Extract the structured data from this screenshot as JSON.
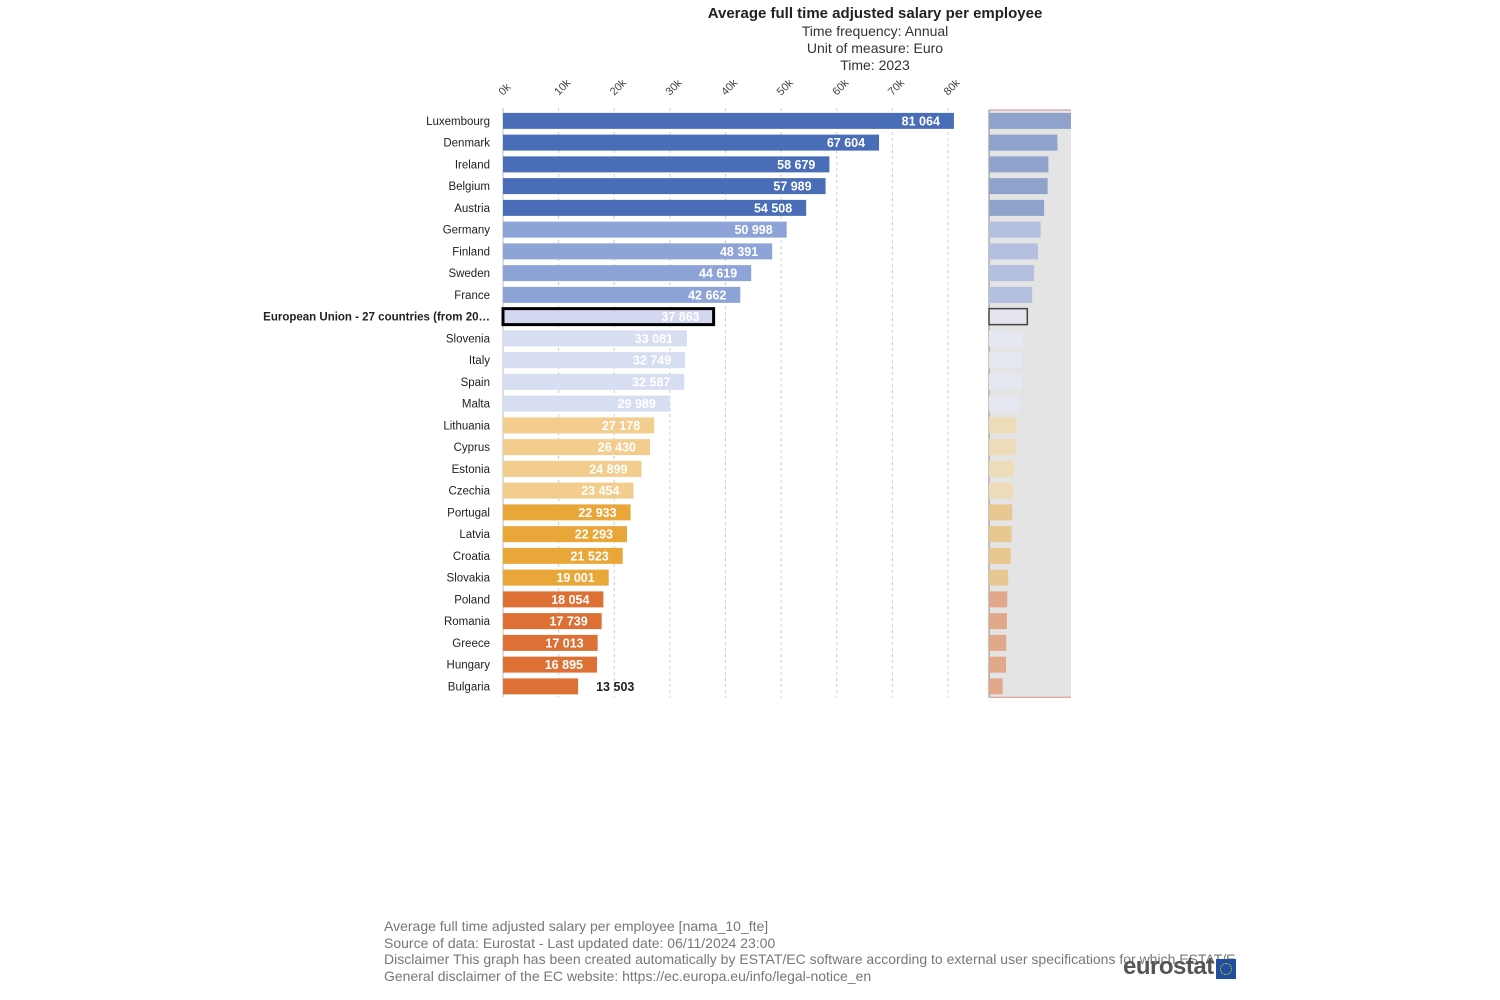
{
  "chart_data": {
    "type": "bar",
    "orientation": "horizontal",
    "title": "Average full time adjusted salary per employee",
    "subtitle": [
      "Time frequency:  Annual",
      "Unit of measure:  Euro",
      "Time:  2023"
    ],
    "xlim": [
      0,
      80000
    ],
    "xticks": [
      "0k",
      "10k",
      "20k",
      "30k",
      "40k",
      "50k",
      "60k",
      "70k",
      "80k"
    ],
    "grid": true,
    "highlighted_category": "European Union - 27 countries (from 20…",
    "categories": [
      "Luxembourg",
      "Denmark",
      "Ireland",
      "Belgium",
      "Austria",
      "Germany",
      "Finland",
      "Sweden",
      "France",
      "European Union - 27 countries (from 20…",
      "Slovenia",
      "Italy",
      "Spain",
      "Malta",
      "Lithuania",
      "Cyprus",
      "Estonia",
      "Czechia",
      "Portugal",
      "Latvia",
      "Croatia",
      "Slovakia",
      "Poland",
      "Romania",
      "Greece",
      "Hungary",
      "Bulgaria"
    ],
    "values": [
      81064,
      67604,
      58679,
      57989,
      54508,
      50998,
      48391,
      44619,
      42662,
      37863,
      33081,
      32749,
      32587,
      29989,
      27178,
      26430,
      24899,
      23454,
      22933,
      22293,
      21523,
      19001,
      18054,
      17739,
      17013,
      16895,
      13503
    ],
    "value_labels": [
      "81 064",
      "67 604",
      "58 679",
      "57 989",
      "54 508",
      "50 998",
      "48 391",
      "44 619",
      "42 662",
      "37 863",
      "33 081",
      "32 749",
      "32 587",
      "29 989",
      "27 178",
      "26 430",
      "24 899",
      "23 454",
      "22 933",
      "22 293",
      "21 523",
      "19 001",
      "18 054",
      "17 739",
      "17 013",
      "16 895",
      "13 503"
    ],
    "colors": [
      "#4a6db8",
      "#4a6db8",
      "#4a6db8",
      "#4a6db8",
      "#4a6db8",
      "#8ea3d8",
      "#8ea3d8",
      "#8ea3d8",
      "#8ea3d8",
      "#d3d7f0",
      "#d8def2",
      "#d8def2",
      "#d8def2",
      "#d8def2",
      "#f2cd8e",
      "#f2cd8e",
      "#f2cd8e",
      "#f2cd8e",
      "#e9a73a",
      "#e9a73a",
      "#e9a73a",
      "#e9a73a",
      "#dc7035",
      "#dc7035",
      "#dc7035",
      "#dc7035",
      "#dc7035"
    ],
    "navigator_colors": [
      "#8ea2cc",
      "#8ea2cc",
      "#8ea2cc",
      "#8ea2cc",
      "#8ea2cc",
      "#b3c0df",
      "#b3c0df",
      "#b3c0df",
      "#b3c0df",
      "#e3e4ee",
      "#e6e8f1",
      "#e6e8f1",
      "#e6e8f1",
      "#e6e8f1",
      "#eedcb8",
      "#eedcb8",
      "#eedcb8",
      "#eedcb8",
      "#e9c790",
      "#e9c790",
      "#e9c790",
      "#e9c790",
      "#e2a88a",
      "#e2a88a",
      "#e2a88a",
      "#e2a88a",
      "#e2a88a"
    ]
  },
  "footer": {
    "lines": [
      "Average full time adjusted salary per employee [nama_10_fte]",
      "Source of data: Eurostat - Last updated date: 06/11/2024 23:00",
      "Disclaimer This graph has been created automatically by ESTAT/EC software according to external user specifications for which ESTAT/E",
      "General disclaimer of the EC website: https://ec.europa.eu/info/legal-notice_en"
    ]
  },
  "logo": {
    "text": "eurostat"
  }
}
